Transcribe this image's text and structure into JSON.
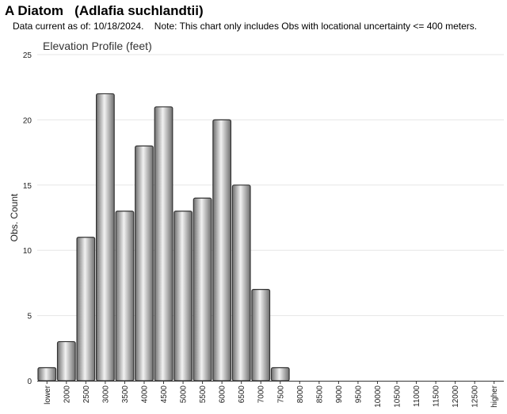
{
  "header": {
    "title": "A Diatom   (Adlafia suchlandtii)",
    "note": "Data current as of: 10/18/2024.    Note: This chart only includes Obs with locational uncertainty <= 400 meters."
  },
  "colors": {
    "bar_light": "#f2f2f2",
    "bar_dark": "#6e6e6e",
    "bar_stroke": "#333333",
    "grid": "#e6e6e6"
  },
  "chart_data": {
    "type": "bar",
    "title": "Elevation Profile (feet)",
    "xlabel": "",
    "ylabel": "Obs. Count",
    "ylim": [
      0,
      25
    ],
    "yticks": [
      0,
      5,
      10,
      15,
      20,
      25
    ],
    "grid": true,
    "legend": "none",
    "categories": [
      "lower",
      "2000",
      "2500",
      "3000",
      "3500",
      "4000",
      "4500",
      "5000",
      "5500",
      "6000",
      "6500",
      "7000",
      "7500",
      "8000",
      "8500",
      "9000",
      "9500",
      "10000",
      "10500",
      "11000",
      "11500",
      "12000",
      "12500",
      "higher"
    ],
    "values": [
      1,
      3,
      11,
      22,
      13,
      18,
      21,
      13,
      14,
      20,
      15,
      7,
      1,
      0,
      0,
      0,
      0,
      0,
      0,
      0,
      0,
      0,
      0,
      0
    ]
  }
}
